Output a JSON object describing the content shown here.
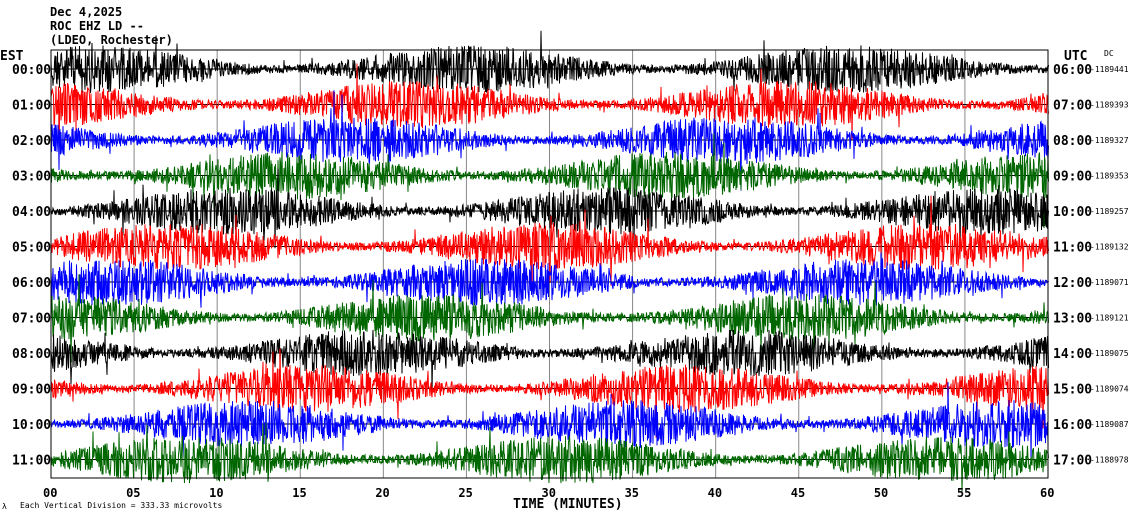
{
  "header": {
    "date": "Dec 4,2025",
    "station": "ROC EHZ LD --",
    "network": "(LDEO, Rochester)"
  },
  "left_axis_title": "EST",
  "right_axis_title": "UTC",
  "dc_title": "DC",
  "footer": {
    "scale_note": "Each Vertical Division =  333.33 microvolts",
    "x_axis_title": "TIME (MINUTES)"
  },
  "chart_data": {
    "type": "line",
    "xlabel": "TIME (MINUTES)",
    "xlim": [
      0,
      60
    ],
    "x_ticks": [
      "00",
      "05",
      "10",
      "15",
      "20",
      "25",
      "30",
      "35",
      "40",
      "45",
      "50",
      "55",
      "60"
    ],
    "grid": true,
    "trace_colors": [
      "#000000",
      "#ff0000",
      "#0000ff",
      "#006600"
    ],
    "rows": [
      {
        "est": "00:00",
        "utc": "06:00",
        "dc": "-1189441"
      },
      {
        "est": "01:00",
        "utc": "07:00",
        "dc": "-1189393"
      },
      {
        "est": "02:00",
        "utc": "08:00",
        "dc": "-1189327"
      },
      {
        "est": "03:00",
        "utc": "09:00",
        "dc": "-1189353"
      },
      {
        "est": "04:00",
        "utc": "10:00",
        "dc": "-1189257"
      },
      {
        "est": "05:00",
        "utc": "11:00",
        "dc": "-1189132"
      },
      {
        "est": "06:00",
        "utc": "12:00",
        "dc": "-1189071"
      },
      {
        "est": "07:00",
        "utc": "13:00",
        "dc": "-1189121"
      },
      {
        "est": "08:00",
        "utc": "14:00",
        "dc": "-1189075"
      },
      {
        "est": "09:00",
        "utc": "15:00",
        "dc": "-1189074"
      },
      {
        "est": "10:00",
        "utc": "16:00",
        "dc": "-1189087"
      },
      {
        "est": "11:00",
        "utc": "17:00",
        "dc": "-1188978"
      }
    ]
  }
}
